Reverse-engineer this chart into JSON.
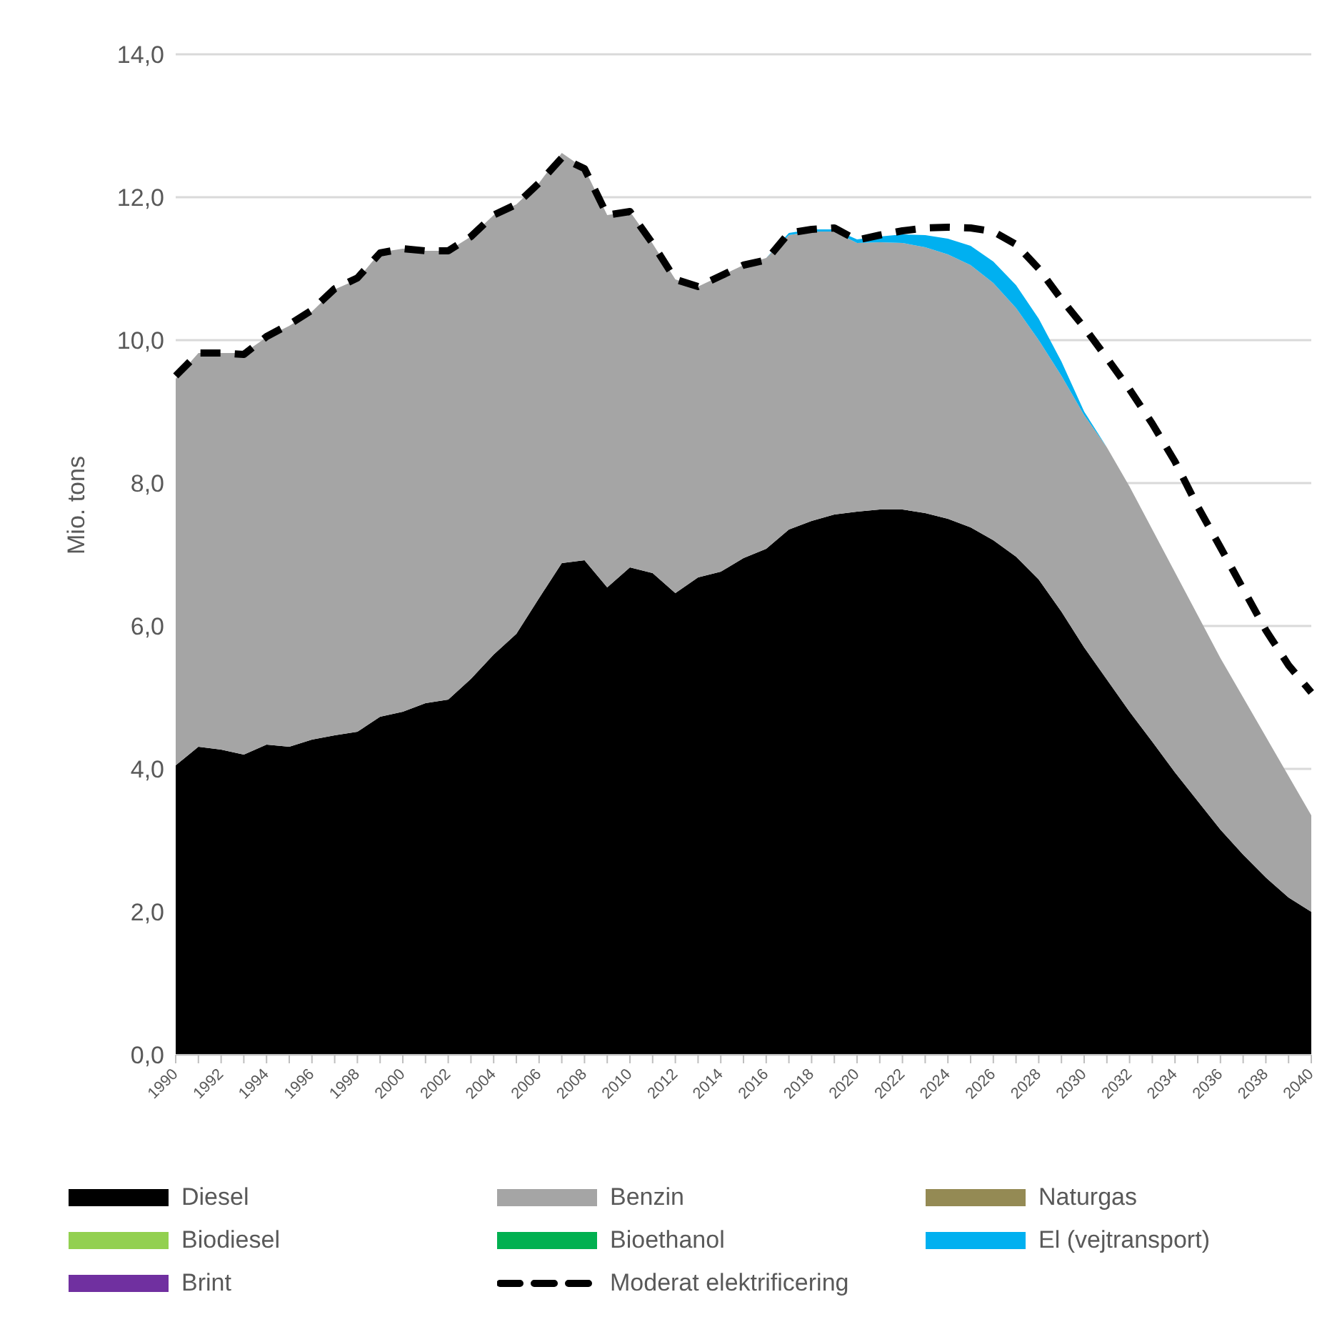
{
  "chart_data": {
    "type": "area",
    "ylabel": "Mio. tons",
    "stacked": true,
    "grid": "y",
    "legend": "bottom",
    "categories": [
      "1990",
      null,
      "1992",
      null,
      "1994",
      null,
      "1996",
      null,
      "1998",
      null,
      "2000",
      null,
      "2002",
      null,
      "2004",
      null,
      "2006",
      null,
      "2008",
      null,
      "2010",
      null,
      "2012",
      null,
      "2014",
      null,
      "2016",
      null,
      "2018",
      null,
      "2020",
      null,
      "2022",
      null,
      "2024",
      null,
      "2026",
      null,
      "2028",
      null,
      "2030",
      null,
      "2032",
      null,
      "2034",
      null,
      "2036",
      null,
      "2038",
      null,
      "2040"
    ],
    "ylim": [
      0,
      14
    ],
    "yticks": [
      {
        "value": 0,
        "label": "0,0"
      },
      {
        "value": 2,
        "label": "2,0"
      },
      {
        "value": 4,
        "label": "4,0"
      },
      {
        "value": 6,
        "label": "6,0"
      },
      {
        "value": 8,
        "label": "8,0"
      },
      {
        "value": 10,
        "label": "10,0"
      },
      {
        "value": 12,
        "label": "12,0"
      },
      {
        "value": 14,
        "label": "14,0"
      }
    ],
    "series": [
      {
        "name": "Diesel",
        "color": "#000000",
        "values": [
          4.05,
          4.31,
          4.27,
          4.2,
          4.34,
          4.31,
          4.41,
          4.47,
          4.52,
          4.73,
          4.8,
          4.92,
          4.97,
          5.26,
          5.6,
          5.89,
          6.39,
          6.88,
          6.92,
          6.54,
          6.82,
          6.74,
          6.46,
          6.68,
          6.76,
          6.95,
          7.08,
          7.35,
          7.47,
          7.56,
          7.6,
          7.63,
          7.63,
          7.58,
          7.5,
          7.38,
          7.2,
          6.97,
          6.65,
          6.2,
          5.7,
          5.25,
          4.8,
          4.38,
          3.95,
          3.55,
          3.15,
          2.8,
          2.48,
          2.2,
          2.0
        ]
      },
      {
        "name": "Benzin",
        "color": "#a5a5a5",
        "values": [
          5.41,
          5.51,
          5.55,
          5.62,
          5.7,
          5.89,
          5.99,
          6.24,
          6.33,
          6.5,
          6.48,
          6.33,
          6.28,
          6.19,
          6.15,
          6.01,
          5.81,
          5.74,
          5.48,
          5.21,
          4.98,
          4.61,
          4.39,
          4.07,
          4.14,
          4.1,
          4.07,
          4.12,
          4.05,
          3.96,
          3.76,
          3.74,
          3.73,
          3.72,
          3.7,
          3.67,
          3.6,
          3.48,
          3.35,
          3.3,
          3.25,
          3.25,
          3.15,
          2.97,
          2.8,
          2.6,
          2.4,
          2.2,
          1.97,
          1.7,
          1.35
        ]
      },
      {
        "name": "Naturgas",
        "color": "#948a54",
        "values": [
          null,
          null,
          null,
          null,
          null,
          null,
          null,
          null,
          null,
          null,
          null,
          null,
          null,
          null,
          null,
          null,
          null,
          null,
          null,
          null,
          null,
          null,
          null,
          null,
          null,
          null,
          null,
          null,
          null,
          null,
          null,
          null,
          null,
          null,
          null,
          null,
          null,
          null,
          null,
          null,
          null,
          null,
          null,
          null,
          null,
          null,
          null,
          null,
          null,
          null,
          null
        ]
      },
      {
        "name": "Biodiesel",
        "color": "#92d050",
        "values": [
          null,
          null,
          null,
          null,
          null,
          null,
          null,
          null,
          null,
          null,
          null,
          null,
          null,
          null,
          null,
          null,
          null,
          null,
          null,
          null,
          null,
          null,
          null,
          null,
          null,
          null,
          null,
          null,
          null,
          null,
          null,
          null,
          null,
          null,
          null,
          null,
          null,
          null,
          null,
          null,
          null,
          null,
          null,
          null,
          null,
          null,
          null,
          null,
          null,
          null,
          null
        ]
      },
      {
        "name": "Bioethanol",
        "color": "#00b050",
        "values": [
          null,
          null,
          null,
          null,
          null,
          null,
          null,
          null,
          null,
          null,
          null,
          null,
          null,
          null,
          null,
          null,
          null,
          null,
          null,
          null,
          null,
          null,
          null,
          null,
          null,
          null,
          null,
          null,
          null,
          null,
          null,
          null,
          null,
          null,
          null,
          null,
          null,
          null,
          null,
          null,
          null,
          null,
          null,
          null,
          null,
          null,
          null,
          null,
          null,
          null,
          null
        ]
      },
      {
        "name": "El (vejtransport)",
        "color": "#00b0f0",
        "values": [
          0,
          0,
          0,
          0,
          0,
          0,
          0,
          0,
          0,
          0,
          0,
          0,
          0,
          0,
          0,
          0,
          0,
          0,
          0,
          0,
          0,
          0,
          0,
          0,
          0,
          0,
          0,
          0.03,
          0.03,
          0.03,
          0.05,
          0.08,
          0.12,
          0.17,
          0.22,
          0.27,
          0.3,
          0.32,
          0.3,
          0.2,
          0.05,
          0,
          0,
          0,
          0,
          0,
          0,
          0,
          0,
          0,
          0
        ]
      },
      {
        "name": "Brint",
        "color": "#7030a0",
        "values": [
          null,
          null,
          null,
          null,
          null,
          null,
          null,
          null,
          null,
          null,
          null,
          null,
          null,
          null,
          null,
          null,
          null,
          null,
          null,
          null,
          null,
          null,
          null,
          null,
          null,
          null,
          null,
          null,
          null,
          null,
          null,
          null,
          null,
          null,
          null,
          null,
          null,
          null,
          null,
          null,
          null,
          null,
          null,
          null,
          null,
          null,
          null,
          null,
          null,
          null,
          null
        ]
      },
      {
        "name": "Moderat elektrificering",
        "type": "line",
        "line_style": "dashed",
        "color": "#000000",
        "values": [
          9.5,
          9.82,
          9.82,
          9.8,
          10.05,
          10.22,
          10.42,
          10.72,
          10.87,
          11.22,
          11.28,
          11.25,
          11.25,
          11.45,
          11.75,
          11.9,
          12.2,
          12.55,
          12.4,
          11.75,
          11.8,
          11.35,
          10.85,
          10.75,
          10.9,
          11.05,
          11.12,
          11.5,
          11.55,
          11.57,
          11.4,
          11.47,
          11.53,
          11.57,
          11.58,
          11.57,
          11.52,
          11.34,
          11.0,
          10.57,
          10.18,
          9.75,
          9.31,
          8.83,
          8.3,
          7.67,
          7.1,
          6.52,
          5.94,
          5.45,
          5.07
        ]
      }
    ]
  }
}
